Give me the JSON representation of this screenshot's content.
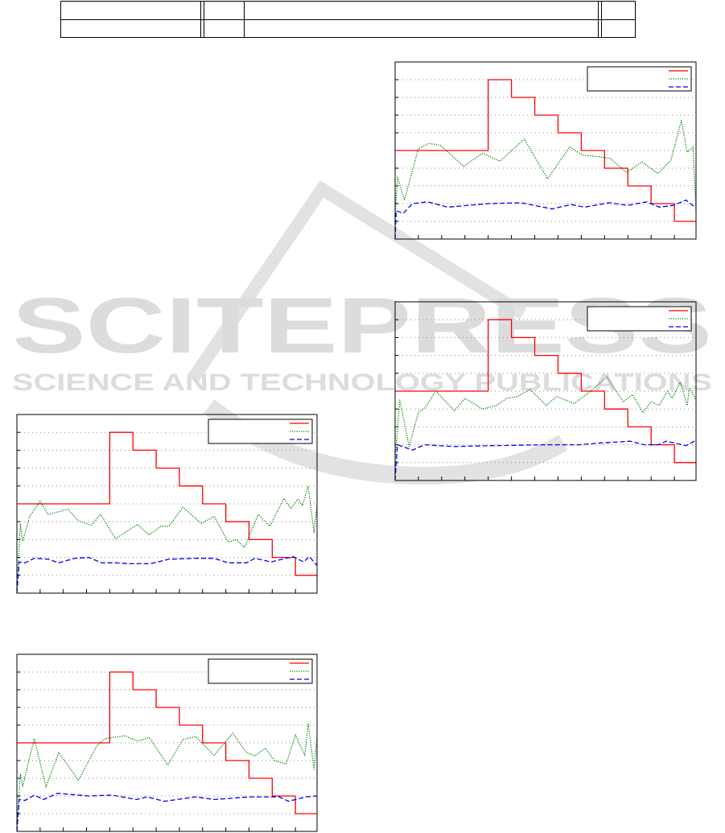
{
  "watermark": {
    "title": "SCITEPRESS",
    "subtitle": "SCIENCE AND TECHNOLOGY PUBLICATIONS"
  },
  "colors": {
    "step": "#ff0000",
    "dotted": "#008000",
    "dashed": "#0000ff",
    "grid": "#888888"
  },
  "chart_data": [
    {
      "type": "line",
      "xlim": [
        0,
        12.93
      ],
      "ylim": [
        0,
        10
      ],
      "grid": true,
      "legend": "top-right",
      "series": [
        {
          "style": "step",
          "x": [
            0,
            4,
            5,
            6,
            7,
            8,
            9,
            10,
            11,
            12,
            12.93
          ],
          "values": [
            5,
            9,
            8,
            7,
            6,
            5,
            4,
            3,
            2,
            1,
            1
          ]
        },
        {
          "style": "dotted",
          "x": [
            0,
            0.1,
            0.4,
            1,
            1.45,
            1.95,
            2.95,
            3.75,
            4.5,
            5.55,
            6.55,
            7.5,
            8.05,
            8.75,
            9.25,
            9.95,
            10.6,
            11.3,
            11.85,
            12.3,
            12.55,
            12.8,
            12.93
          ],
          "values": [
            1.3,
            3.5,
            2.2,
            5.1,
            5.4,
            5.3,
            4.1,
            4.85,
            4.4,
            5.65,
            3.4,
            5.2,
            4.75,
            4.65,
            4.55,
            3.75,
            4.35,
            3.7,
            4.45,
            6.7,
            4.9,
            5.2,
            1.6
          ]
        },
        {
          "style": "dashed",
          "x": [
            0,
            0.05,
            0.35,
            0.75,
            1.4,
            2.25,
            4,
            5.4,
            6.75,
            7.55,
            8.15,
            9.2,
            10,
            10.8,
            11.35,
            11.95,
            12.5,
            12.93
          ],
          "values": [
            0,
            1.6,
            1.45,
            2.0,
            2.1,
            1.8,
            2.0,
            2.05,
            1.7,
            1.95,
            1.8,
            2.05,
            1.9,
            2.1,
            1.8,
            1.9,
            2.2,
            1.75
          ]
        }
      ]
    },
    {
      "type": "line",
      "xlim": [
        0,
        12.93
      ],
      "ylim": [
        0,
        10
      ],
      "grid": true,
      "legend": "top-right",
      "series": [
        {
          "style": "step",
          "x": [
            0,
            4,
            5,
            6,
            7,
            8,
            9,
            10,
            11,
            12,
            12.93
          ],
          "values": [
            5,
            9,
            8,
            7,
            6,
            5,
            4,
            3,
            2,
            1,
            1
          ]
        },
        {
          "style": "dotted",
          "x": [
            0,
            0.2,
            0.6,
            1,
            1.3,
            1.75,
            2.55,
            3,
            3.75,
            4.35,
            4.8,
            5.25,
            5.8,
            6.5,
            6.95,
            7.7,
            8.4,
            9.1,
            9.8,
            10.2,
            10.65,
            11,
            11.35,
            11.7,
            11.9,
            12.25,
            12.55,
            12.65,
            12.93
          ],
          "values": [
            1.2,
            4.5,
            1.9,
            3.8,
            4.1,
            5,
            3.9,
            4.6,
            4.0,
            4.2,
            4.6,
            4.7,
            5.1,
            4.2,
            4.7,
            4.3,
            5,
            5.8,
            4.4,
            4.8,
            3.8,
            4.4,
            4.2,
            5.0,
            4.6,
            5.5,
            4.2,
            5.2,
            4.5
          ]
        },
        {
          "style": "dashed",
          "x": [
            0,
            0.1,
            0.75,
            1.25,
            2.5,
            4.2,
            6.5,
            7.9,
            8.85,
            10.1,
            10.7,
            11.3,
            11.65,
            12.5,
            12.93
          ],
          "values": [
            0,
            2.0,
            1.7,
            2.0,
            1.9,
            1.95,
            2.0,
            2.0,
            2.1,
            2.2,
            2.0,
            2.0,
            2.2,
            1.95,
            2.25
          ]
        }
      ]
    },
    {
      "type": "line",
      "xlim": [
        0,
        12.93
      ],
      "ylim": [
        0,
        10
      ],
      "grid": true,
      "legend": "top-right",
      "series": [
        {
          "style": "step",
          "x": [
            0,
            4,
            5,
            6,
            7,
            8,
            9,
            10,
            11,
            12,
            12.93
          ],
          "values": [
            5,
            9,
            8,
            7,
            6,
            5,
            4,
            3,
            2,
            1,
            1
          ]
        },
        {
          "style": "dotted",
          "x": [
            0,
            0.15,
            0.25,
            0.55,
            1,
            1.35,
            2.2,
            2.65,
            3.2,
            3.6,
            4.25,
            5.2,
            5.7,
            6.2,
            6.55,
            7.15,
            7.95,
            8.5,
            9.1,
            9.45,
            9.8,
            10.4,
            10.9,
            11.5,
            11.8,
            12.1,
            12.3,
            12.55,
            12.8,
            12.93
          ],
          "values": [
            0.3,
            3.9,
            2.9,
            4.3,
            5.15,
            4.4,
            4.7,
            4.05,
            3.8,
            4.4,
            3.05,
            3.85,
            3.25,
            3.75,
            3.75,
            4.8,
            3.9,
            4.3,
            2.85,
            3.0,
            2.55,
            4.4,
            3.75,
            5.3,
            4.75,
            5.25,
            4.9,
            6.0,
            3.4,
            4.95
          ]
        },
        {
          "style": "dashed",
          "x": [
            0,
            0.1,
            0.35,
            0.75,
            1.35,
            1.8,
            2.5,
            3.1,
            3.65,
            4.25,
            4.85,
            5.75,
            6.55,
            7.7,
            8.5,
            9.1,
            9.9,
            10.25,
            10.95,
            11.9,
            12.35,
            12.6,
            12.93
          ],
          "values": [
            0,
            1.75,
            1.7,
            1.95,
            1.9,
            1.7,
            1.95,
            2.0,
            1.7,
            1.7,
            1.65,
            1.65,
            1.9,
            1.95,
            1.95,
            1.7,
            1.7,
            1.95,
            1.75,
            2.05,
            1.75,
            2.05,
            1.55
          ]
        }
      ]
    },
    {
      "type": "line",
      "xlim": [
        0,
        12.93
      ],
      "ylim": [
        0,
        10
      ],
      "grid": true,
      "legend": "top-right",
      "series": [
        {
          "style": "step",
          "x": [
            0,
            4,
            5,
            6,
            7,
            8,
            9,
            10,
            11,
            12,
            12.93
          ],
          "values": [
            5,
            9,
            8,
            7,
            6,
            5,
            4,
            3,
            2,
            1,
            1
          ]
        },
        {
          "style": "dotted",
          "x": [
            0,
            0.15,
            0.25,
            0.75,
            1.25,
            1.8,
            2.65,
            3.45,
            3.8,
            4.65,
            5.2,
            5.7,
            6.5,
            7.15,
            7.7,
            8.5,
            9.3,
            9.85,
            10.25,
            10.7,
            11.1,
            11.6,
            12,
            12.4,
            12.55,
            12.8,
            12.93
          ],
          "values": [
            0.4,
            3.25,
            2.55,
            5.25,
            2.5,
            4.45,
            2.9,
            4.85,
            5.25,
            5.4,
            5.1,
            5.3,
            3.75,
            5.2,
            5.35,
            4.3,
            5.55,
            4.5,
            4.25,
            4.7,
            4.0,
            3.8,
            5.45,
            4.3,
            6.1,
            3.5,
            5.3
          ]
        },
        {
          "style": "dashed",
          "x": [
            0,
            0.1,
            0.35,
            0.75,
            1.15,
            1.75,
            3.1,
            4.1,
            5.15,
            5.6,
            6.35,
            7.7,
            8.5,
            10.05,
            11.3,
            11.7,
            12.45,
            12.93
          ],
          "values": [
            0,
            1.8,
            1.75,
            2.05,
            1.8,
            2.15,
            2.0,
            2.05,
            1.8,
            1.95,
            1.7,
            1.95,
            1.8,
            1.95,
            1.95,
            1.7,
            1.95,
            2.0
          ]
        }
      ]
    }
  ]
}
